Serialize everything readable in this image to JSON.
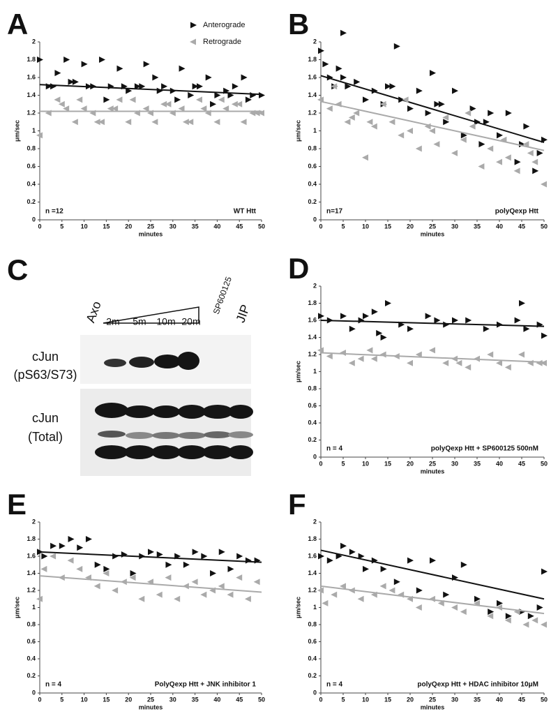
{
  "chart_data": [
    {
      "type": "scatter",
      "label": "A",
      "xlabel": "minutes",
      "ylabel": "μm/sec",
      "xlim": [
        0,
        50
      ],
      "ylim": [
        0,
        2
      ],
      "xticks": [
        0,
        5,
        10,
        15,
        20,
        25,
        30,
        35,
        40,
        45,
        50
      ],
      "yticks": [
        0,
        0.2,
        0.4,
        0.6,
        0.8,
        1,
        1.2,
        1.4,
        1.6,
        1.8,
        2
      ],
      "annotations": [
        "n =12",
        "WT Htt"
      ],
      "legend": true,
      "series": [
        {
          "name": "Anterograde",
          "color": "#111111",
          "marker": "right",
          "trend": [
            1.52,
            1.41
          ],
          "x": [
            0,
            2,
            4,
            6,
            8,
            10,
            12,
            14,
            16,
            18,
            20,
            22,
            24,
            26,
            28,
            30,
            32,
            34,
            36,
            38,
            40,
            42,
            44,
            46,
            48,
            50,
            3,
            7,
            11,
            15,
            19,
            23,
            27,
            31,
            35,
            39,
            43,
            47
          ],
          "values": [
            1.8,
            1.5,
            1.65,
            1.8,
            1.55,
            1.75,
            1.5,
            1.8,
            1.5,
            1.7,
            1.45,
            1.5,
            1.75,
            1.6,
            1.5,
            1.45,
            1.7,
            1.4,
            1.5,
            1.6,
            1.4,
            1.45,
            1.5,
            1.6,
            1.4,
            1.4,
            1.5,
            1.55,
            1.5,
            1.35,
            1.5,
            1.5,
            1.45,
            1.35,
            1.5,
            1.3,
            1.4,
            1.35
          ]
        },
        {
          "name": "Retrograde",
          "color": "#aaaaaa",
          "marker": "left",
          "trend": [
            1.22,
            1.22
          ],
          "x": [
            0,
            2,
            4,
            6,
            8,
            10,
            12,
            14,
            16,
            18,
            20,
            22,
            24,
            26,
            28,
            30,
            32,
            34,
            36,
            38,
            40,
            42,
            44,
            46,
            48,
            50,
            5,
            9,
            13,
            17,
            21,
            25,
            29,
            33,
            37,
            41,
            45,
            49
          ],
          "values": [
            0.95,
            1.2,
            1.35,
            1.25,
            1.1,
            1.25,
            1.2,
            1.1,
            1.25,
            1.35,
            1.1,
            1.2,
            1.25,
            1.1,
            1.3,
            1.2,
            1.25,
            1.1,
            1.35,
            1.2,
            1.1,
            1.25,
            1.3,
            1.1,
            1.2,
            1.2,
            1.3,
            1.35,
            1.1,
            1.25,
            1.35,
            1.2,
            1.3,
            1.1,
            1.25,
            1.35,
            1.3,
            1.2
          ]
        }
      ]
    },
    {
      "type": "scatter",
      "label": "B",
      "xlabel": "minutes",
      "ylabel": "μm/sec",
      "xlim": [
        0,
        50
      ],
      "ylim": [
        0,
        2
      ],
      "xticks": [
        0,
        5,
        10,
        15,
        20,
        25,
        30,
        35,
        40,
        45,
        50
      ],
      "yticks": [
        0,
        0.2,
        0.4,
        0.6,
        0.8,
        1,
        1.2,
        1.4,
        1.6,
        1.8,
        2
      ],
      "annotations": [
        "n=17",
        "polyQexp Htt"
      ],
      "legend": false,
      "series": [
        {
          "name": "Anterograde",
          "color": "#111111",
          "marker": "right",
          "trend": [
            1.62,
            0.87
          ],
          "x": [
            0,
            1,
            2,
            3,
            4,
            5,
            6,
            8,
            10,
            12,
            14,
            16,
            17,
            18,
            20,
            22,
            24,
            25,
            26,
            28,
            30,
            32,
            34,
            35,
            36,
            38,
            40,
            42,
            44,
            45,
            46,
            48,
            49,
            50,
            5,
            15,
            27,
            37
          ],
          "values": [
            1.9,
            1.75,
            1.6,
            1.5,
            1.7,
            2.1,
            1.5,
            1.55,
            1.35,
            1.45,
            1.3,
            1.5,
            1.95,
            1.35,
            1.25,
            1.45,
            1.2,
            1.65,
            1.3,
            1.1,
            1.45,
            0.95,
            1.25,
            1.1,
            0.85,
            1.2,
            0.95,
            1.2,
            0.65,
            0.85,
            1.05,
            0.55,
            0.75,
            0.9,
            1.6,
            1.5,
            1.3,
            1.1
          ]
        },
        {
          "name": "Retrograde",
          "color": "#aaaaaa",
          "marker": "left",
          "trend": [
            1.33,
            0.78
          ],
          "x": [
            0,
            2,
            4,
            6,
            8,
            10,
            11,
            12,
            14,
            16,
            18,
            20,
            22,
            24,
            26,
            28,
            30,
            32,
            34,
            36,
            38,
            40,
            42,
            44,
            46,
            48,
            50,
            3,
            7,
            19,
            25,
            33,
            41,
            47
          ],
          "values": [
            1.35,
            1.25,
            1.3,
            1.1,
            1.2,
            0.7,
            1.1,
            1.05,
            1.3,
            1.1,
            0.95,
            1.0,
            0.8,
            1.05,
            0.85,
            1.15,
            0.75,
            0.9,
            1.05,
            0.6,
            0.8,
            0.65,
            0.7,
            0.55,
            0.85,
            0.65,
            0.4,
            1.5,
            1.15,
            1.35,
            1.0,
            1.2,
            0.9,
            0.75
          ]
        }
      ]
    },
    {
      "type": "scatter",
      "label": "D",
      "xlabel": "minutes",
      "ylabel": "μm/sec",
      "xlim": [
        0,
        50
      ],
      "ylim": [
        0,
        2
      ],
      "xticks": [
        0,
        5,
        10,
        15,
        20,
        25,
        30,
        35,
        40,
        45,
        50
      ],
      "yticks": [
        0,
        0.2,
        0.4,
        0.6,
        0.8,
        1,
        1.2,
        1.4,
        1.6,
        1.8,
        2
      ],
      "annotations": [
        "n = 4",
        "polyQexp Htt + SP600125 500nM"
      ],
      "legend": false,
      "series": [
        {
          "name": "Anterograde",
          "color": "#111111",
          "marker": "right",
          "trend": [
            1.6,
            1.53
          ],
          "x": [
            0,
            2,
            5,
            7,
            9,
            10,
            12,
            13,
            14,
            15,
            18,
            20,
            24,
            26,
            28,
            30,
            33,
            37,
            40,
            44,
            45,
            46,
            49,
            50
          ],
          "values": [
            1.65,
            1.6,
            1.65,
            1.5,
            1.6,
            1.65,
            1.7,
            1.45,
            1.4,
            1.8,
            1.55,
            1.5,
            1.65,
            1.6,
            1.55,
            1.6,
            1.6,
            1.5,
            1.55,
            1.6,
            1.8,
            1.5,
            1.55,
            1.42
          ]
        },
        {
          "name": "Retrograde",
          "color": "#aaaaaa",
          "marker": "left",
          "trend": [
            1.22,
            1.11
          ],
          "x": [
            0,
            2,
            5,
            7,
            9,
            11,
            12,
            14,
            17,
            20,
            22,
            25,
            28,
            30,
            31,
            33,
            35,
            38,
            40,
            42,
            45,
            47,
            49,
            50
          ],
          "values": [
            1.25,
            1.18,
            1.22,
            1.1,
            1.15,
            1.25,
            1.15,
            1.2,
            1.18,
            1.1,
            1.2,
            1.25,
            1.1,
            1.15,
            1.1,
            1.05,
            1.15,
            1.2,
            1.1,
            1.05,
            1.2,
            1.1,
            1.1,
            1.1
          ]
        }
      ]
    },
    {
      "type": "scatter",
      "label": "E",
      "xlabel": "minutes",
      "ylabel": "μm/sec",
      "xlim": [
        0,
        50
      ],
      "ylim": [
        0,
        2
      ],
      "xticks": [
        0,
        5,
        10,
        15,
        20,
        25,
        30,
        35,
        40,
        45,
        50
      ],
      "yticks": [
        0,
        0.2,
        0.4,
        0.6,
        0.8,
        1,
        1.2,
        1.4,
        1.6,
        1.8,
        2
      ],
      "annotations": [
        "n = 4",
        "PolyQexp Htt + JNK inhibitor 1"
      ],
      "legend": false,
      "series": [
        {
          "name": "Anterograde",
          "color": "#111111",
          "marker": "right",
          "trend": [
            1.65,
            1.53
          ],
          "x": [
            0,
            1,
            3,
            5,
            7,
            9,
            11,
            13,
            15,
            17,
            19,
            21,
            23,
            25,
            27,
            29,
            31,
            33,
            35,
            37,
            39,
            41,
            43,
            45,
            47,
            49
          ],
          "values": [
            1.65,
            1.6,
            1.72,
            1.72,
            1.8,
            1.7,
            1.8,
            1.5,
            1.45,
            1.6,
            1.62,
            1.4,
            1.6,
            1.65,
            1.62,
            1.5,
            1.6,
            1.5,
            1.65,
            1.6,
            1.4,
            1.65,
            1.45,
            1.6,
            1.55,
            1.55
          ]
        },
        {
          "name": "Retrograde",
          "color": "#aaaaaa",
          "marker": "left",
          "trend": [
            1.37,
            1.18
          ],
          "x": [
            0,
            1,
            3,
            5,
            7,
            9,
            11,
            13,
            15,
            17,
            19,
            21,
            23,
            25,
            27,
            29,
            31,
            33,
            35,
            37,
            39,
            41,
            43,
            45,
            47,
            49
          ],
          "values": [
            1.1,
            1.45,
            1.6,
            1.35,
            1.55,
            1.45,
            1.35,
            1.25,
            1.4,
            1.2,
            1.3,
            1.35,
            1.1,
            1.3,
            1.15,
            1.35,
            1.1,
            1.25,
            1.3,
            1.15,
            1.2,
            1.25,
            1.15,
            1.35,
            1.1,
            1.3
          ]
        }
      ]
    },
    {
      "type": "scatter",
      "label": "F",
      "xlabel": "minutes",
      "ylabel": "μm/sec",
      "xlim": [
        0,
        50
      ],
      "ylim": [
        0,
        2
      ],
      "xticks": [
        0,
        5,
        10,
        15,
        20,
        25,
        30,
        35,
        40,
        45,
        50
      ],
      "yticks": [
        0,
        0.2,
        0.4,
        0.6,
        0.8,
        1,
        1.2,
        1.4,
        1.6,
        1.8,
        2
      ],
      "annotations": [
        "n = 4",
        "polyQexp Htt + HDAC inhibitor 10μM"
      ],
      "legend": false,
      "series": [
        {
          "name": "Anterograde",
          "color": "#111111",
          "marker": "right",
          "trend": [
            1.67,
            1.1
          ],
          "x": [
            0,
            2,
            4,
            5,
            7,
            9,
            10,
            12,
            14,
            17,
            20,
            22,
            25,
            28,
            30,
            32,
            35,
            38,
            40,
            42,
            45,
            47,
            49,
            50
          ],
          "values": [
            1.6,
            1.55,
            1.6,
            1.72,
            1.65,
            1.6,
            1.45,
            1.55,
            1.45,
            1.3,
            1.55,
            1.2,
            1.55,
            1.15,
            1.35,
            1.5,
            1.1,
            0.95,
            1.05,
            0.9,
            0.95,
            0.9,
            1.0,
            1.42
          ]
        },
        {
          "name": "Retrograde",
          "color": "#aaaaaa",
          "marker": "left",
          "trend": [
            1.25,
            0.93
          ],
          "x": [
            0,
            1,
            3,
            5,
            7,
            9,
            12,
            14,
            16,
            18,
            20,
            22,
            25,
            27,
            30,
            32,
            35,
            38,
            40,
            42,
            44,
            46,
            48,
            50
          ],
          "values": [
            1.2,
            1.05,
            1.15,
            1.25,
            1.2,
            1.1,
            1.15,
            1.25,
            1.2,
            1.15,
            1.1,
            1.0,
            1.1,
            1.05,
            1.0,
            0.95,
            1.05,
            0.9,
            1.0,
            0.85,
            0.95,
            0.8,
            0.85,
            0.8
          ]
        }
      ]
    }
  ],
  "blot": {
    "label": "C",
    "lanes": [
      "Axo",
      "2m",
      "5m",
      "10m",
      "20m",
      "SP600125",
      "JIP"
    ],
    "rows": [
      [
        "cJun",
        "(pS63/S73)"
      ],
      [
        "cJun",
        "(Total)"
      ]
    ]
  }
}
